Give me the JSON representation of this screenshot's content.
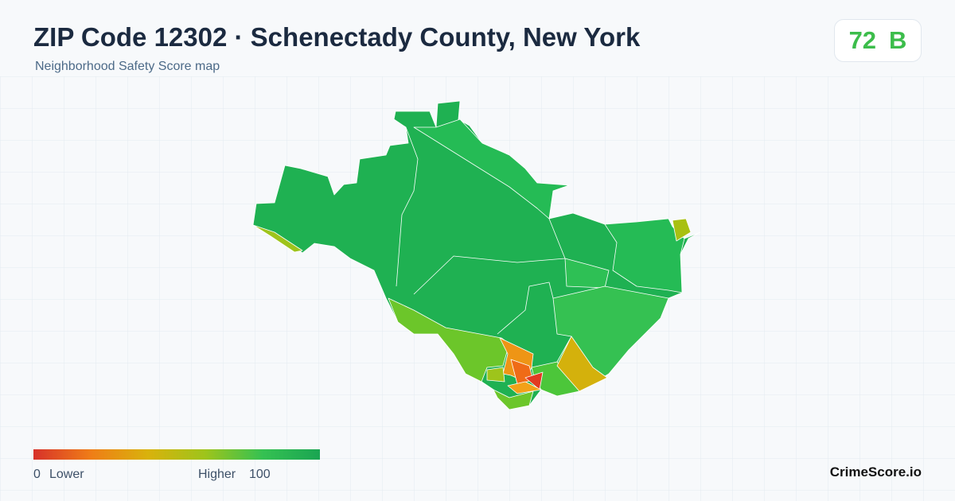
{
  "header": {
    "title": "ZIP Code 12302 · Schenectady County, New York",
    "subtitle": "Neighborhood Safety Score map",
    "score": "72",
    "grade": "B"
  },
  "legend": {
    "min": "0",
    "low_label": "Lower",
    "high_label": "Higher",
    "max": "100"
  },
  "footer": {
    "brand": "CrimeScore.io"
  }
}
